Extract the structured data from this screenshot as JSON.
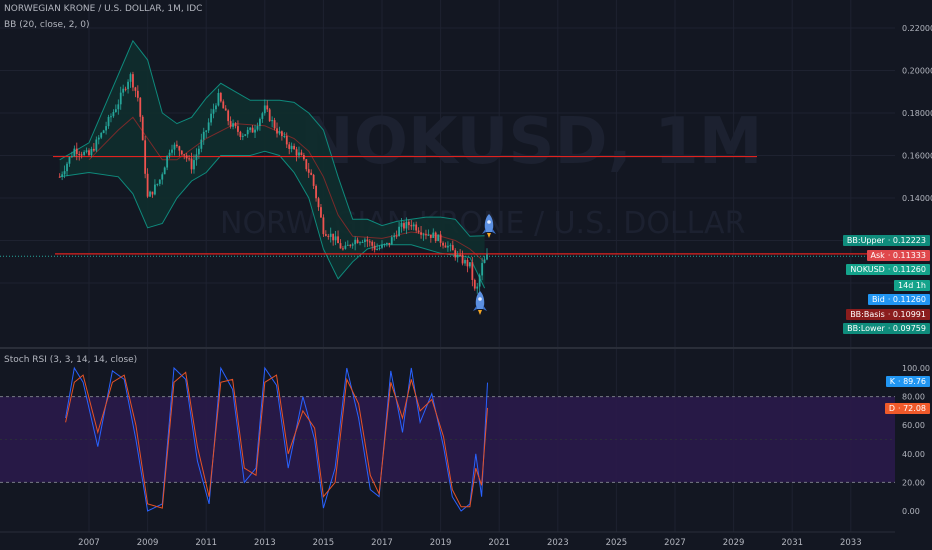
{
  "legend": {
    "symbol_line": "NORWEGIAN KRONE / U.S. DOLLAR, 1M, IDC",
    "bb_line": "BB (20, close, 2, 0)",
    "rsi_line": "Stoch RSI (3, 3, 14, 14, close)"
  },
  "watermark": {
    "symbol": "NOKUSD, 1M",
    "name": "NORWEGIAN KRONE / U.S. DOLLAR"
  },
  "price_tags": [
    {
      "label": "BB:Upper",
      "value": "0.12223",
      "color": "#0f8c7c"
    },
    {
      "label": "Ask",
      "value": "0.11333",
      "color": "#e0484c"
    },
    {
      "label": "NOKUSD",
      "value": "0.11260",
      "color": "#14a38b"
    },
    {
      "label": "",
      "value": "14d 1h",
      "color": "#14a38b"
    },
    {
      "label": "Bid",
      "value": "0.11260",
      "color": "#2196f3"
    },
    {
      "label": "BB:Basis",
      "value": "0.10991",
      "color": "#8b1d1d"
    },
    {
      "label": "BB:Lower",
      "value": "0.09759",
      "color": "#0f8c7c"
    }
  ],
  "rsi_tags": [
    {
      "label": "K",
      "value": "89.76",
      "color": "#2196f3"
    },
    {
      "label": "D",
      "value": "72.08",
      "color": "#f05a2a"
    }
  ],
  "colors": {
    "bg": "#131722",
    "up": "#26a69a",
    "down": "#ef5350",
    "bb_band": "#0e8a7c",
    "bb_fill": "#0f2e2e",
    "basis": "#7a2a2a",
    "hline": "#e0221e",
    "k": "#2962ff",
    "d": "#e65226",
    "rsi_band": "#2a1a4a"
  },
  "icons": [
    "rocket-icon",
    "rocket-icon"
  ],
  "chart_data": [
    {
      "type": "candlestick",
      "title": "NORWEGIAN KRONE / U.S. DOLLAR, 1M, IDC",
      "y_ticks": [
        "0.22000",
        "0.20000",
        "0.18000",
        "0.16000",
        "0.14000"
      ],
      "ylim": [
        0.09,
        0.225
      ],
      "x_ticks": [
        "2007",
        "2009",
        "2011",
        "2013",
        "2015",
        "2017",
        "2019",
        "2021",
        "2023",
        "2025",
        "2027",
        "2029",
        "2031",
        "2033"
      ],
      "xlim": [
        2006.0,
        2034.2
      ],
      "horizontal_lines": [
        0.1595,
        0.1137
      ],
      "close_series": {
        "x": [
          2006.0,
          2006.5,
          2007.0,
          2007.5,
          2008.0,
          2008.4,
          2008.7,
          2009.0,
          2009.4,
          2009.8,
          2010.2,
          2010.5,
          2011.0,
          2011.4,
          2011.8,
          2012.2,
          2012.6,
          2013.0,
          2013.4,
          2013.8,
          2014.2,
          2014.6,
          2015.0,
          2015.3,
          2015.7,
          2016.0,
          2016.4,
          2016.8,
          2017.2,
          2017.6,
          2018.0,
          2018.4,
          2018.8,
          2019.2,
          2019.6,
          2020.0,
          2020.2,
          2020.4,
          2020.6
        ],
        "y": [
          0.15,
          0.163,
          0.16,
          0.172,
          0.185,
          0.198,
          0.186,
          0.14,
          0.148,
          0.165,
          0.162,
          0.155,
          0.172,
          0.188,
          0.175,
          0.17,
          0.172,
          0.182,
          0.172,
          0.165,
          0.16,
          0.15,
          0.125,
          0.122,
          0.115,
          0.12,
          0.121,
          0.116,
          0.118,
          0.126,
          0.128,
          0.124,
          0.122,
          0.118,
          0.112,
          0.108,
          0.094,
          0.108,
          0.1126
        ]
      },
      "bb_upper": {
        "x": [
          2006.0,
          2007.0,
          2008.0,
          2008.5,
          2009.0,
          2009.5,
          2010.0,
          2010.5,
          2011.0,
          2011.5,
          2012.0,
          2012.5,
          2013.0,
          2013.5,
          2014.0,
          2014.5,
          2015.0,
          2015.5,
          2016.0,
          2016.5,
          2017.0,
          2017.5,
          2018.0,
          2018.5,
          2019.0,
          2019.5,
          2020.0,
          2020.5
        ],
        "y": [
          0.158,
          0.166,
          0.198,
          0.214,
          0.205,
          0.18,
          0.175,
          0.178,
          0.187,
          0.194,
          0.19,
          0.186,
          0.186,
          0.186,
          0.185,
          0.18,
          0.172,
          0.15,
          0.13,
          0.13,
          0.127,
          0.129,
          0.13,
          0.131,
          0.131,
          0.13,
          0.122,
          0.1222
        ]
      },
      "bb_lower": {
        "x": [
          2006.0,
          2007.0,
          2008.0,
          2008.5,
          2009.0,
          2009.5,
          2010.0,
          2010.5,
          2011.0,
          2011.5,
          2012.0,
          2012.5,
          2013.0,
          2013.5,
          2014.0,
          2014.5,
          2015.0,
          2015.5,
          2016.0,
          2016.5,
          2017.0,
          2017.5,
          2018.0,
          2018.5,
          2019.0,
          2019.5,
          2020.0,
          2020.5
        ],
        "y": [
          0.15,
          0.152,
          0.15,
          0.142,
          0.126,
          0.128,
          0.14,
          0.148,
          0.152,
          0.16,
          0.16,
          0.16,
          0.162,
          0.16,
          0.152,
          0.14,
          0.116,
          0.102,
          0.11,
          0.116,
          0.118,
          0.118,
          0.118,
          0.116,
          0.114,
          0.113,
          0.112,
          0.0976
        ]
      },
      "bb_basis": {
        "x": [
          2007.0,
          2008.0,
          2008.5,
          2009.0,
          2009.5,
          2010.0,
          2011.0,
          2012.0,
          2013.0,
          2014.0,
          2014.5,
          2015.0,
          2015.5,
          2016.0,
          2017.0,
          2018.0,
          2019.0,
          2019.5,
          2020.0,
          2020.5
        ],
        "y": [
          0.158,
          0.172,
          0.178,
          0.168,
          0.158,
          0.158,
          0.168,
          0.175,
          0.174,
          0.168,
          0.162,
          0.15,
          0.132,
          0.122,
          0.121,
          0.124,
          0.122,
          0.12,
          0.116,
          0.1099
        ]
      }
    },
    {
      "type": "line",
      "title": "Stoch RSI (3, 3, 14, 14, close)",
      "y_ticks": [
        "100.00",
        "80.00",
        "60.00",
        "40.00",
        "20.00",
        "0.00"
      ],
      "ylim": [
        -5,
        105
      ],
      "band": [
        20,
        80
      ],
      "series": [
        {
          "name": "K",
          "x": [
            2006.2,
            2006.5,
            2006.8,
            2007.3,
            2007.8,
            2008.2,
            2008.6,
            2009.0,
            2009.5,
            2009.9,
            2010.3,
            2010.7,
            2011.1,
            2011.5,
            2011.9,
            2012.3,
            2012.7,
            2013.0,
            2013.4,
            2013.8,
            2014.3,
            2014.7,
            2015.0,
            2015.4,
            2015.8,
            2016.2,
            2016.6,
            2016.9,
            2017.3,
            2017.7,
            2018.0,
            2018.3,
            2018.7,
            2019.1,
            2019.4,
            2019.7,
            2020.0,
            2020.2,
            2020.4,
            2020.6
          ],
          "y": [
            65,
            100,
            90,
            45,
            98,
            92,
            50,
            0,
            5,
            100,
            92,
            35,
            5,
            100,
            85,
            20,
            30,
            100,
            88,
            30,
            80,
            50,
            2,
            30,
            100,
            65,
            15,
            10,
            98,
            55,
            100,
            62,
            82,
            45,
            10,
            0,
            5,
            40,
            10,
            89.76
          ]
        },
        {
          "name": "D",
          "x": [
            2006.2,
            2006.5,
            2006.8,
            2007.3,
            2007.8,
            2008.2,
            2008.6,
            2009.0,
            2009.5,
            2009.9,
            2010.3,
            2010.7,
            2011.1,
            2011.5,
            2011.9,
            2012.3,
            2012.7,
            2013.0,
            2013.4,
            2013.8,
            2014.3,
            2014.7,
            2015.0,
            2015.4,
            2015.8,
            2016.2,
            2016.6,
            2016.9,
            2017.3,
            2017.7,
            2018.0,
            2018.3,
            2018.7,
            2019.1,
            2019.4,
            2019.7,
            2020.0,
            2020.2,
            2020.4,
            2020.6
          ],
          "y": [
            62,
            90,
            95,
            55,
            90,
            95,
            60,
            5,
            2,
            90,
            97,
            45,
            10,
            90,
            92,
            30,
            25,
            90,
            95,
            40,
            70,
            58,
            10,
            20,
            92,
            75,
            25,
            12,
            90,
            65,
            92,
            70,
            78,
            52,
            15,
            3,
            3,
            30,
            18,
            72.08
          ]
        }
      ]
    }
  ]
}
